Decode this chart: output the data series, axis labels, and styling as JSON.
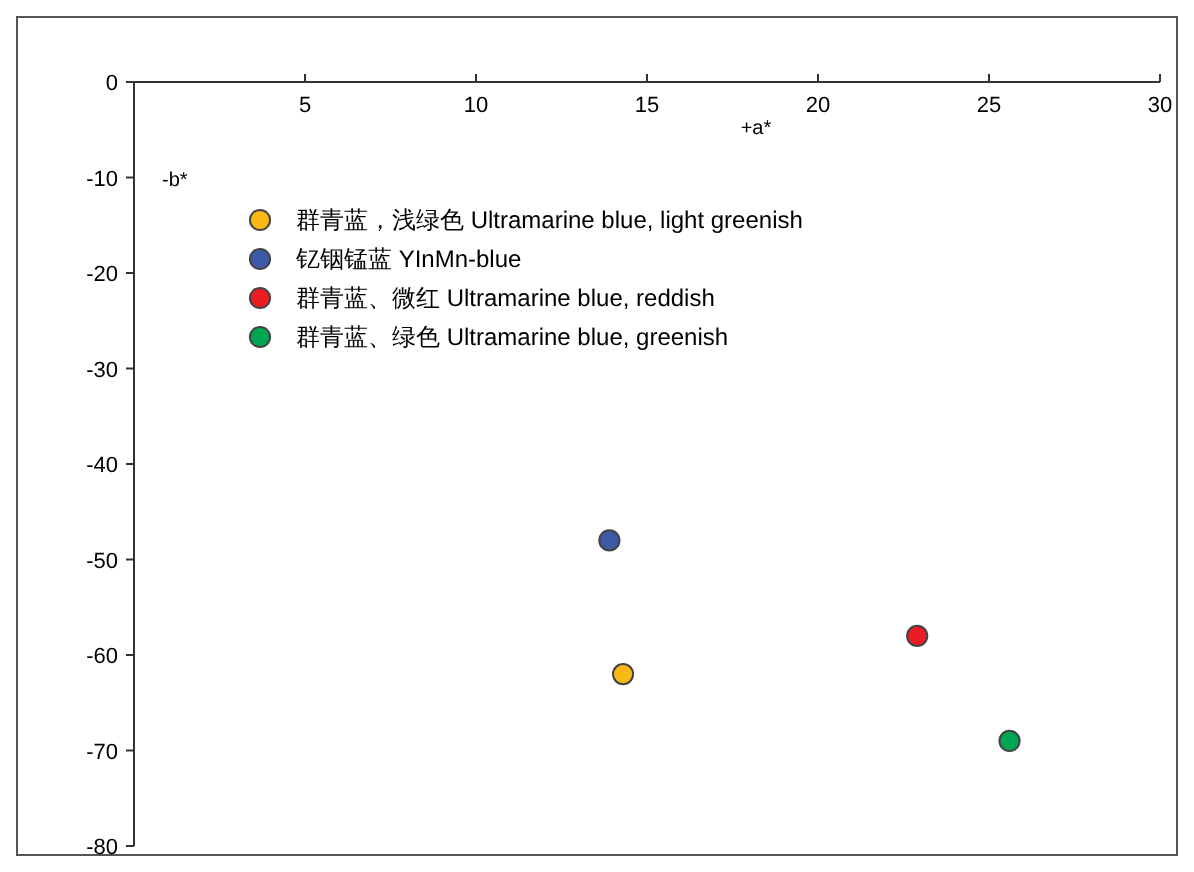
{
  "chart_data": {
    "type": "scatter",
    "xlabel": "+a*",
    "ylabel": "-b*",
    "xlim": [
      0,
      30
    ],
    "xticks": [
      5,
      10,
      15,
      20,
      25,
      30
    ],
    "ylim": [
      -80,
      0
    ],
    "yticks": [
      0,
      -10,
      -20,
      -30,
      -40,
      -50,
      -60,
      -70,
      -80
    ],
    "grid": false,
    "legend": "top left",
    "marker": "circle",
    "series": [
      {
        "name": "群青蓝，浅绿色 Ultramarine blue, light greenish",
        "color": "#fbb917",
        "x": [
          14.3
        ],
        "values": [
          -62
        ]
      },
      {
        "name": "钇铟锰蓝 YInMn-blue",
        "color": "#3c5aa6",
        "x": [
          13.9
        ],
        "values": [
          -48
        ]
      },
      {
        "name": "群青蓝、微红 Ultramarine blue, reddish",
        "color": "#ec1c24",
        "x": [
          22.9
        ],
        "values": [
          -58
        ]
      },
      {
        "name": "群青蓝、绿色 Ultramarine blue, greenish",
        "color": "#00a651",
        "x": [
          25.6
        ],
        "values": [
          -69
        ]
      }
    ]
  }
}
